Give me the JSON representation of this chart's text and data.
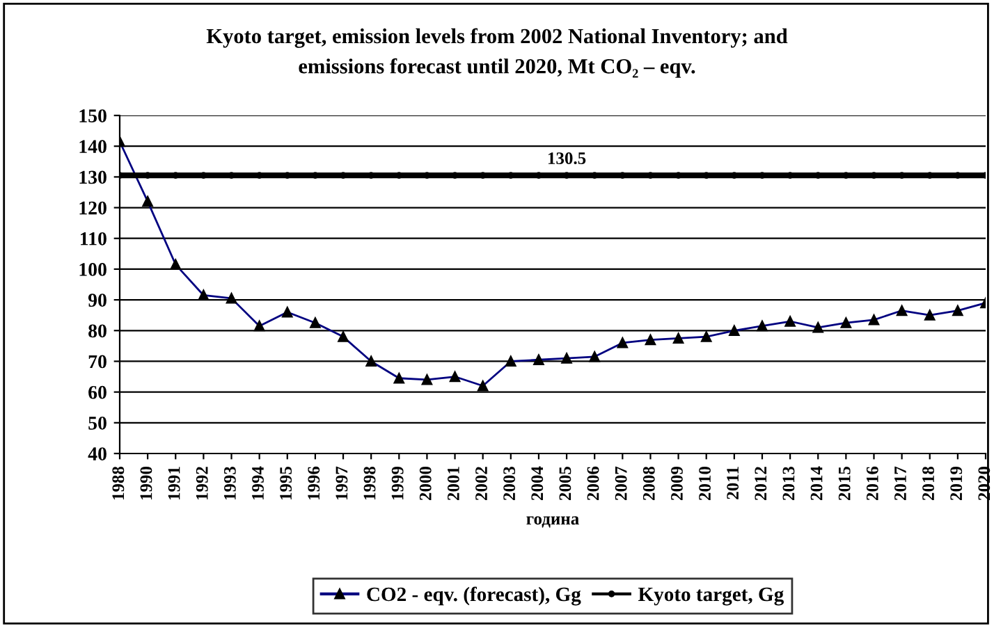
{
  "chart_data": {
    "type": "line",
    "title": "Kyoto target, emission levels from 2002 National Inventory; and\nemissions forecast until 2020, Mt CO₂ – eqv.",
    "xlabel": "година",
    "categories": [
      "1988",
      "1990",
      "1991",
      "1992",
      "1993",
      "1994",
      "1995",
      "1996",
      "1997",
      "1998",
      "1999",
      "2000",
      "2001",
      "2002",
      "2003",
      "2004",
      "2005",
      "2006",
      "2007",
      "2008",
      "2009",
      "2010",
      "2011",
      "2012",
      "2013",
      "2014",
      "2015",
      "2016",
      "2017",
      "2018",
      "2019",
      "2020"
    ],
    "series": [
      {
        "name": "CO2 - eqv. (forecast), Gg",
        "color": "#000080",
        "marker": "triangle",
        "values": [
          141.5,
          122,
          101.5,
          91.5,
          90.5,
          81.5,
          86,
          82.5,
          78,
          70,
          64.5,
          64,
          65,
          62,
          70,
          70.5,
          71,
          71.5,
          76,
          77,
          77.5,
          78,
          80,
          81.5,
          83,
          81,
          82.5,
          83.5,
          86.5,
          85,
          86.5,
          89
        ]
      },
      {
        "name": "Kyoto target, Gg",
        "color": "#000000",
        "marker": "circle",
        "values": [
          130.5,
          130.5,
          130.5,
          130.5,
          130.5,
          130.5,
          130.5,
          130.5,
          130.5,
          130.5,
          130.5,
          130.5,
          130.5,
          130.5,
          130.5,
          130.5,
          130.5,
          130.5,
          130.5,
          130.5,
          130.5,
          130.5,
          130.5,
          130.5,
          130.5,
          130.5,
          130.5,
          130.5,
          130.5,
          130.5,
          130.5,
          130.5
        ],
        "value_labels": [
          null,
          null,
          null,
          null,
          null,
          null,
          null,
          null,
          null,
          null,
          null,
          null,
          null,
          null,
          null,
          null,
          "130.5",
          null,
          null,
          null,
          null,
          null,
          null,
          null,
          null,
          null,
          null,
          null,
          null,
          null,
          null,
          null
        ]
      }
    ],
    "ylim": [
      40,
      150
    ],
    "yticks": [
      40,
      50,
      60,
      70,
      80,
      90,
      100,
      110,
      120,
      130,
      140,
      150
    ],
    "grid": "y",
    "legend": "bottom"
  }
}
